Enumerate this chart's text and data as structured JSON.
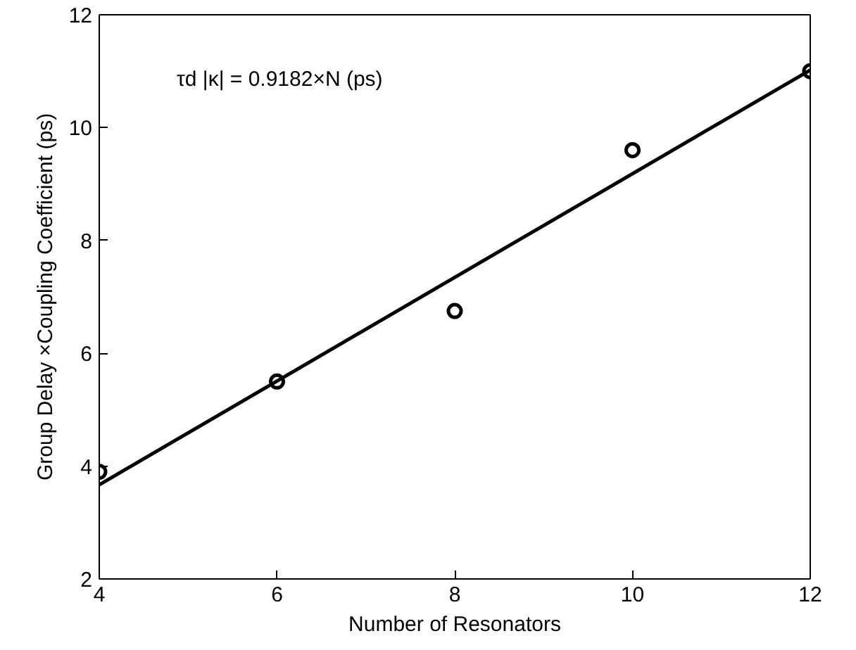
{
  "chart_data": {
    "type": "scatter",
    "xlabel": "Number of Resonators",
    "ylabel": "Group Delay ×Coupling Coefficient (ps)",
    "annotations": [
      "τd |κ| = 0.9182×N (ps)"
    ],
    "xlim": [
      4,
      12
    ],
    "ylim": [
      2,
      12
    ],
    "xticks": [
      4,
      6,
      8,
      10,
      12
    ],
    "yticks": [
      2,
      4,
      6,
      8,
      10,
      12
    ],
    "grid": false,
    "series": [
      {
        "color": "#000000",
        "x": [
          4,
          6,
          8,
          10,
          12
        ],
        "values": [
          3.9,
          5.5,
          6.75,
          9.6,
          11.0
        ],
        "marker": "circle"
      },
      {
        "type": "line",
        "color": "#000000",
        "x": [
          4,
          12
        ],
        "values": [
          3.67,
          11.02
        ],
        "line_style": "solid"
      }
    ]
  }
}
